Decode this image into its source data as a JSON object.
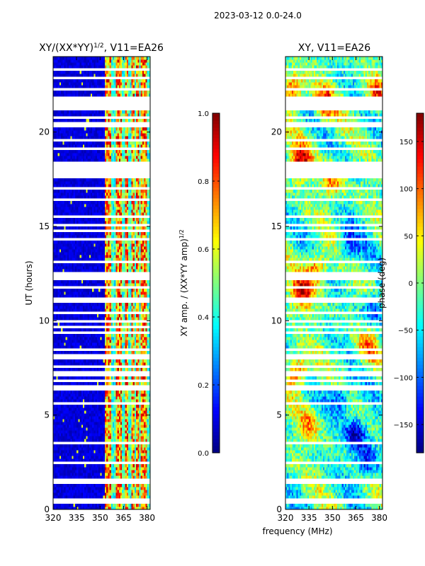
{
  "figure": {
    "suptitle": "2023-03-12 0.0-24.0",
    "xlabel": "frequency (MHz)"
  },
  "chart_data": [
    {
      "type": "heatmap",
      "title_prefix": "XY/(XX*YY)",
      "title_sup": "1/2",
      "title_suffix": ", V11=EA26",
      "ylabel": "UT (hours)",
      "x_range": [
        320,
        382
      ],
      "y_range": [
        0,
        24
      ],
      "x_ticks": [
        320,
        335,
        350,
        365,
        380
      ],
      "y_ticks": [
        0,
        5,
        10,
        15,
        20
      ],
      "colorbar": {
        "label_prefix": "XY amp. / (XX*YY amp)",
        "label_sup": "1/2",
        "range": [
          0.0,
          1.0
        ],
        "ticks": [
          "0.0",
          "0.2",
          "0.4",
          "0.6",
          "0.8",
          "1.0"
        ],
        "tick_values": [
          0.0,
          0.2,
          0.4,
          0.6,
          0.8,
          1.0
        ],
        "colormap": "jet"
      },
      "flagged_hours": [
        0.35,
        0.55,
        1.45,
        1.55,
        2.45,
        3.55,
        5.6,
        6.35,
        6.55,
        6.8,
        7.2,
        7.55,
        8.1,
        8.45,
        9.35,
        9.7,
        9.95,
        10.45,
        11.1,
        11.8,
        12.3,
        12.45,
        13.15,
        14.35,
        14.75,
        15.05,
        15.5,
        16.45,
        17.0,
        17.7,
        18.0,
        18.3,
        19.1,
        19.6,
        20.4,
        20.75,
        21.3,
        21.6,
        21.85,
        22.3,
        22.9,
        23.3
      ],
      "bright_channels_mhz": [
        354,
        356,
        361,
        362,
        363,
        367,
        371,
        374,
        377,
        379
      ],
      "bright_start_mhz": 353
    },
    {
      "type": "heatmap",
      "title": "XY, V11=EA26",
      "x_range": [
        320,
        382
      ],
      "y_range": [
        0,
        24
      ],
      "x_ticks": [
        320,
        335,
        350,
        365,
        380
      ],
      "y_ticks": [
        0,
        5,
        10,
        15,
        20
      ],
      "colorbar": {
        "label": "phase (deg)",
        "range": [
          -180,
          180
        ],
        "ticks": [
          "−150",
          "−100",
          "−50",
          "0",
          "50",
          "100",
          "150"
        ],
        "tick_values": [
          -150,
          -100,
          -50,
          0,
          50,
          100,
          150
        ],
        "colormap": "jet"
      },
      "flagged_hours": [
        0.35,
        0.55,
        1.45,
        1.55,
        2.45,
        3.55,
        5.6,
        6.35,
        6.55,
        6.8,
        7.2,
        7.55,
        8.1,
        8.45,
        9.35,
        9.7,
        9.95,
        10.45,
        11.1,
        11.8,
        12.3,
        12.45,
        13.15,
        14.35,
        14.75,
        15.05,
        15.5,
        16.45,
        17.0,
        17.7,
        18.0,
        18.3,
        19.1,
        19.6,
        20.4,
        20.75,
        21.3,
        21.6,
        21.85,
        22.3,
        22.9,
        23.3
      ],
      "warm_blobs": [
        {
          "f": 325,
          "t": 22.3,
          "amp": 150
        },
        {
          "f": 345,
          "t": 21.5,
          "amp": 140
        },
        {
          "f": 330,
          "t": 18.5,
          "amp": 160
        },
        {
          "f": 350,
          "t": 17.5,
          "amp": 120
        },
        {
          "f": 330,
          "t": 11.5,
          "amp": 165
        },
        {
          "f": 340,
          "t": 12.8,
          "amp": 140
        },
        {
          "f": 328,
          "t": 7.3,
          "amp": 150
        },
        {
          "f": 335,
          "t": 4.5,
          "amp": 90
        },
        {
          "f": 372,
          "t": 8.5,
          "amp": 110
        },
        {
          "f": 378,
          "t": 22.0,
          "amp": 120
        }
      ],
      "cold_blobs": [
        {
          "f": 365,
          "t": 4.0,
          "amp": -140
        },
        {
          "f": 372,
          "t": 2.5,
          "amp": -120
        },
        {
          "f": 355,
          "t": 6.0,
          "amp": -110
        },
        {
          "f": 360,
          "t": 14.0,
          "amp": -100
        },
        {
          "f": 376,
          "t": 10.5,
          "amp": -90
        }
      ]
    }
  ]
}
